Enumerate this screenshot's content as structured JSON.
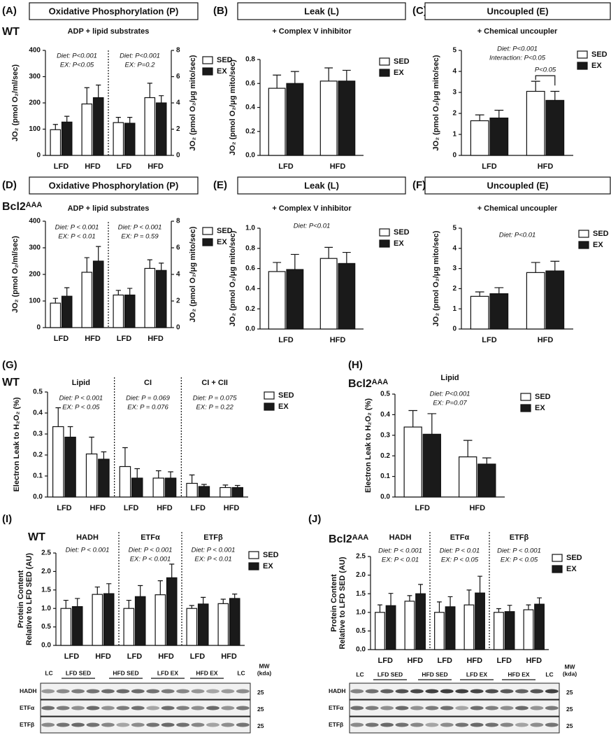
{
  "chart_data": [
    {
      "type": "bar",
      "panel": "(A)",
      "header": "Oxidative Phosphorylation (P)",
      "strain": "WT",
      "subtitle": "ADP + lipid substrates",
      "ylabel": [
        "JO₂ (pmol O₂/ml/sec)"
      ],
      "y2label": [
        "JO₂ (pmol O₂/μg mito/sec)"
      ],
      "categories": [
        "LFD",
        "HFD",
        "LFD",
        "HFD"
      ],
      "series": [
        {
          "name": "SED",
          "color": "#ffffff",
          "values": [
            98,
            196,
            null,
            null
          ],
          "errors": [
            20,
            62,
            null,
            null
          ]
        },
        {
          "name": "EX",
          "color": "#1a1a1a",
          "values": [
            127,
            220,
            null,
            null
          ],
          "errors": [
            22,
            48,
            null,
            null
          ]
        },
        {
          "color": "#ffffff",
          "axis": "y2",
          "values": [
            null,
            null,
            2.5,
            4.4
          ],
          "errors": [
            null,
            null,
            0.4,
            1.1
          ]
        },
        {
          "color": "#1a1a1a",
          "axis": "y2",
          "values": [
            null,
            null,
            2.45,
            4.0
          ],
          "errors": [
            null,
            null,
            0.45,
            0.55
          ]
        }
      ],
      "ylim": [
        0,
        400
      ],
      "yticks": [
        0,
        100,
        200,
        300,
        400
      ],
      "y2lim": [
        0,
        8
      ],
      "y2ticks": [
        0,
        2,
        4,
        6,
        8
      ],
      "groups": [
        {
          "annotations": [
            "Diet: P<0.001",
            "EX: P<0.05"
          ]
        },
        {
          "annotations": [
            "Diet: P<0.001",
            "EX: P=0.2"
          ]
        }
      ]
    },
    {
      "type": "bar",
      "panel": "(B)",
      "header": "Leak (L)",
      "subtitle": "+ Complex V inhibitor",
      "ylabel": [
        "JO₂ (pmol O₂/μg mito/sec)"
      ],
      "categories": [
        "LFD",
        "HFD"
      ],
      "series": [
        {
          "name": "SED",
          "color": "#ffffff",
          "values": [
            0.56,
            0.62
          ],
          "errors": [
            0.11,
            0.11
          ]
        },
        {
          "name": "EX",
          "color": "#1a1a1a",
          "values": [
            0.6,
            0.62
          ],
          "errors": [
            0.1,
            0.09
          ]
        }
      ],
      "ylim": [
        0,
        0.8
      ],
      "yticks": [
        {
          "value": 0,
          "label": "0.0"
        },
        0.2,
        0.4,
        0.6,
        0.8
      ]
    },
    {
      "type": "bar",
      "panel": "(C)",
      "header": "Uncoupled (E)",
      "subtitle": "+ Chemical uncoupler",
      "ylabel": [
        "JO₂ (pmol O₂/μg mito/sec)"
      ],
      "categories": [
        "LFD",
        "HFD"
      ],
      "series": [
        {
          "name": "SED",
          "color": "#ffffff",
          "values": [
            1.65,
            3.05
          ],
          "errors": [
            0.28,
            0.48
          ]
        },
        {
          "name": "EX",
          "color": "#1a1a1a",
          "values": [
            1.78,
            2.62
          ],
          "errors": [
            0.37,
            0.43
          ]
        }
      ],
      "ylim": [
        0,
        5
      ],
      "yticks": [
        0,
        1,
        2,
        3,
        4,
        5
      ],
      "groups": [
        {
          "annotations": [
            "Diet: P<0.001",
            "Interaction: P<0.05"
          ]
        }
      ],
      "bracket": {
        "label": "P<0.05"
      }
    },
    {
      "type": "bar",
      "panel": "(D)",
      "header": "Oxidative Phosphorylation (P)",
      "strain": "Bcl2ᴬᴬᴬ",
      "subtitle": "ADP + lipid substrates",
      "ylabel": [
        "JO₂ (pmol O₂/ml/sec)"
      ],
      "y2label": [
        "JO₂ (pmol O₂/μg mito/sec)"
      ],
      "categories": [
        "LFD",
        "HFD",
        "LFD",
        "HFD"
      ],
      "series": [
        {
          "name": "SED",
          "color": "#ffffff",
          "values": [
            92,
            208,
            null,
            null
          ],
          "errors": [
            18,
            55,
            null,
            null
          ]
        },
        {
          "name": "EX",
          "color": "#1a1a1a",
          "values": [
            118,
            250,
            null,
            null
          ],
          "errors": [
            32,
            55,
            null,
            null
          ]
        },
        {
          "color": "#ffffff",
          "axis": "y2",
          "values": [
            null,
            null,
            2.45,
            4.45
          ],
          "errors": [
            null,
            null,
            0.35,
            0.65
          ]
        },
        {
          "color": "#1a1a1a",
          "axis": "y2",
          "values": [
            null,
            null,
            2.45,
            4.3
          ],
          "errors": [
            null,
            null,
            0.5,
            0.55
          ]
        }
      ],
      "ylim": [
        0,
        400
      ],
      "yticks": [
        0,
        100,
        200,
        300,
        400
      ],
      "y2lim": [
        0,
        8
      ],
      "y2ticks": [
        0,
        2,
        4,
        6,
        8
      ],
      "groups": [
        {
          "annotations": [
            "Diet: P < 0.001",
            "EX: P < 0.01"
          ]
        },
        {
          "annotations": [
            "Diet: P < 0.001",
            "EX: P = 0.59"
          ]
        }
      ]
    },
    {
      "type": "bar",
      "panel": "(E)",
      "header": "Leak (L)",
      "subtitle": "+ Complex V inhibitor",
      "ylabel": [
        "JO₂ (pmol O₂/μg mito/sec)"
      ],
      "categories": [
        "LFD",
        "HFD"
      ],
      "series": [
        {
          "name": "SED",
          "color": "#ffffff",
          "values": [
            0.57,
            0.7
          ],
          "errors": [
            0.09,
            0.11
          ]
        },
        {
          "name": "EX",
          "color": "#1a1a1a",
          "values": [
            0.59,
            0.65
          ],
          "errors": [
            0.15,
            0.11
          ]
        }
      ],
      "ylim": [
        0,
        1
      ],
      "yticks": [
        {
          "value": 0,
          "label": "0.0"
        },
        0.2,
        0.4,
        0.6,
        0.8,
        {
          "value": 1,
          "label": "1.0"
        }
      ],
      "groups": [
        {
          "annotations": [
            "Diet: P<0.01"
          ]
        }
      ]
    },
    {
      "type": "bar",
      "panel": "(F)",
      "header": "Uncoupled (E)",
      "subtitle": "+ Chemical uncoupler",
      "ylabel": [
        "JO₂ (pmol O₂/μg mito/sec)"
      ],
      "categories": [
        "LFD",
        "HFD"
      ],
      "series": [
        {
          "name": "SED",
          "color": "#ffffff",
          "values": [
            1.62,
            2.8
          ],
          "errors": [
            0.22,
            0.5
          ]
        },
        {
          "name": "EX",
          "color": "#1a1a1a",
          "values": [
            1.75,
            2.88
          ],
          "errors": [
            0.3,
            0.48
          ]
        }
      ],
      "ylim": [
        0,
        5
      ],
      "yticks": [
        0,
        1,
        2,
        3,
        4,
        5
      ],
      "groups": [
        {
          "annotations": [
            "Diet: P<0.01"
          ]
        }
      ]
    },
    {
      "type": "bar",
      "panel": "(G)",
      "strain": "WT",
      "ylabel": [
        "Electron Leak to H₂O₂ (%)"
      ],
      "categories": [
        "LFD",
        "HFD",
        "LFD",
        "HFD",
        "LFD",
        "HFD"
      ],
      "series": [
        {
          "name": "SED",
          "color": "#ffffff",
          "values": [
            0.335,
            0.205,
            0.145,
            0.09,
            0.065,
            0.045
          ],
          "errors": [
            0.09,
            0.08,
            0.09,
            0.035,
            0.04,
            0.012
          ]
        },
        {
          "name": "EX",
          "color": "#1a1a1a",
          "values": [
            0.285,
            0.18,
            0.09,
            0.09,
            0.05,
            0.045
          ],
          "errors": [
            0.05,
            0.035,
            0.045,
            0.03,
            0.01,
            0.01
          ]
        }
      ],
      "ylim": [
        0,
        0.5
      ],
      "yticks": [
        {
          "value": 0,
          "label": "0.0"
        },
        0.1,
        0.2,
        0.3,
        0.4,
        0.5
      ],
      "groups": [
        {
          "label": "Lipid",
          "annotations": [
            "Diet: P < 0.001",
            "EX: P < 0.05"
          ]
        },
        {
          "label": "CI",
          "annotations": [
            "Diet: P = 0.069",
            "EX: P = 0.076"
          ]
        },
        {
          "label": "CI + CII",
          "annotations": [
            "Diet: P = 0.075",
            "EX: P = 0.22"
          ]
        }
      ]
    },
    {
      "type": "bar",
      "panel": "(H)",
      "strain": "Bcl2ᴬᴬᴬ",
      "ylabel": [
        "Electron Leak to H₂O₂ (%)"
      ],
      "categories": [
        "LFD",
        "HFD"
      ],
      "series": [
        {
          "name": "SED",
          "color": "#ffffff",
          "values": [
            0.34,
            0.195
          ],
          "errors": [
            0.08,
            0.08
          ]
        },
        {
          "name": "EX",
          "color": "#1a1a1a",
          "values": [
            0.305,
            0.16
          ],
          "errors": [
            0.1,
            0.03
          ]
        }
      ],
      "ylim": [
        0,
        0.5
      ],
      "yticks": [
        {
          "value": 0,
          "label": "0.0"
        },
        0.1,
        0.2,
        0.3,
        0.4,
        0.5
      ],
      "groups": [
        {
          "label": "Lipid",
          "annotations": [
            "Diet: P<0.001",
            "EX: P=0.07"
          ]
        }
      ]
    },
    {
      "type": "bar",
      "panel": "(I)",
      "strain": "WT",
      "ylabel": [
        "Protein Content",
        "Relative to LFD SED (AU)"
      ],
      "categories": [
        "LFD",
        "HFD",
        "LFD",
        "HFD",
        "LFD",
        "HFD"
      ],
      "series": [
        {
          "name": "SED",
          "color": "#ffffff",
          "values": [
            1.0,
            1.38,
            1.0,
            1.37,
            1.0,
            1.13
          ],
          "errors": [
            0.22,
            0.2,
            0.22,
            0.38,
            0.08,
            0.12
          ]
        },
        {
          "name": "EX",
          "color": "#1a1a1a",
          "values": [
            1.05,
            1.4,
            1.32,
            1.83,
            1.12,
            1.27
          ],
          "errors": [
            0.22,
            0.27,
            0.3,
            0.37,
            0.18,
            0.12
          ]
        }
      ],
      "ylim": [
        0,
        2.5
      ],
      "yticks": [
        {
          "value": 0,
          "label": "0.0"
        },
        0.5,
        {
          "value": 1,
          "label": "1.0"
        },
        1.5,
        {
          "value": 2,
          "label": "2.0"
        },
        2.5
      ],
      "groups": [
        {
          "label": "HADH",
          "annotations": [
            "Diet: P < 0.001"
          ]
        },
        {
          "label": "ETFα",
          "annotations": [
            "Diet: P < 0.001",
            "EX: P < 0.001"
          ]
        },
        {
          "label": "ETFβ",
          "annotations": [
            "Diet: P < 0.001",
            "EX: P < 0.01"
          ]
        }
      ]
    },
    {
      "type": "bar",
      "panel": "(J)",
      "strain": "Bcl2ᴬᴬᴬ",
      "ylabel": [
        "Protein Content",
        "Relative to LFD SED (AU)"
      ],
      "categories": [
        "LFD",
        "HFD",
        "LFD",
        "HFD",
        "LFD",
        "HFD"
      ],
      "series": [
        {
          "name": "SED",
          "color": "#ffffff",
          "values": [
            1.0,
            1.3,
            1.0,
            1.2,
            1.0,
            1.07
          ],
          "errors": [
            0.2,
            0.15,
            0.28,
            0.4,
            0.1,
            0.13
          ]
        },
        {
          "name": "EX",
          "color": "#1a1a1a",
          "values": [
            1.18,
            1.5,
            1.15,
            1.52,
            1.02,
            1.22
          ],
          "errors": [
            0.33,
            0.25,
            0.27,
            0.45,
            0.17,
            0.17
          ]
        }
      ],
      "ylim": [
        0,
        2.5
      ],
      "yticks": [
        {
          "value": 0,
          "label": "0.0"
        },
        0.5,
        {
          "value": 1,
          "label": "1.0"
        },
        1.5,
        {
          "value": 2,
          "label": "2.0"
        },
        2.5
      ],
      "groups": [
        {
          "label": "HADH",
          "annotations": [
            "Diet: P < 0.001",
            "EX: P < 0.01"
          ]
        },
        {
          "label": "ETFα",
          "annotations": [
            "Diet: P < 0.01",
            "EX: P < 0.05"
          ]
        },
        {
          "label": "ETFβ",
          "annotations": [
            "Diet: P < 0.001",
            "EX: P < 0.05"
          ]
        }
      ]
    }
  ],
  "blots": [
    {
      "lanes": [
        "LC",
        "LFD SED",
        "HFD SED",
        "LFD EX",
        "HFD EX",
        "LC"
      ],
      "mw": [
        "MW",
        "(kda)"
      ],
      "rows": [
        {
          "label": "HADH",
          "mw": 25
        },
        {
          "label": "ETFα",
          "mw": 25
        },
        {
          "label": "ETFβ",
          "mw": 25
        }
      ]
    },
    {
      "lanes": [
        "LC",
        "LFD SED",
        "HFD SED",
        "LFD EX",
        "HFD EX",
        "LC"
      ],
      "mw": [
        "MW",
        "(kda)"
      ],
      "rows": [
        {
          "label": "HADH",
          "mw": 25
        },
        {
          "label": "ETFα",
          "mw": 25
        },
        {
          "label": "ETFβ",
          "mw": 25
        }
      ]
    }
  ]
}
